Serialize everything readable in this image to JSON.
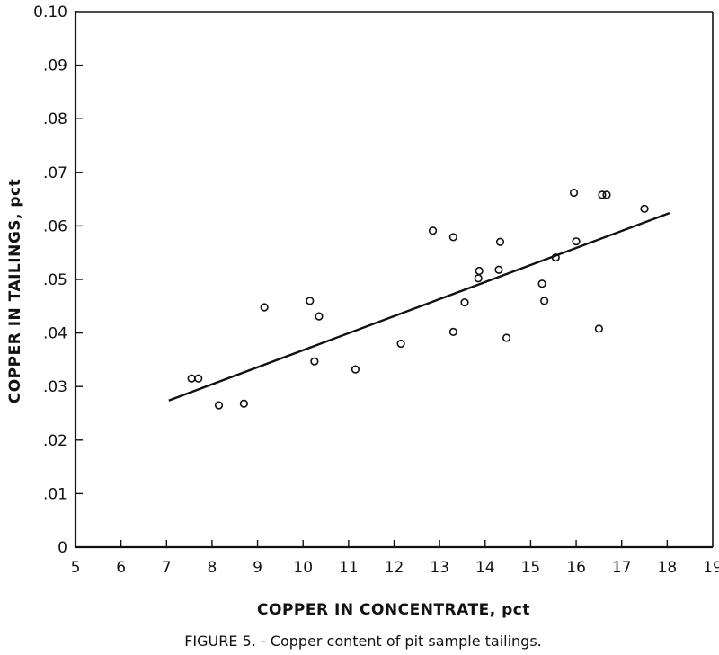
{
  "chart_data": {
    "type": "scatter",
    "title": "",
    "caption": "FIGURE 5. - Copper content of pit sample tailings.",
    "xlabel": "COPPER IN CONCENTRATE, pct",
    "ylabel": "COPPER IN TAILINGS, pct",
    "xlim": [
      5,
      19
    ],
    "ylim": [
      0,
      0.1
    ],
    "x_ticks": [
      "5",
      "6",
      "7",
      "8",
      "9",
      "10",
      "11",
      "12",
      "13",
      "14",
      "15",
      "16",
      "17",
      "18",
      "19"
    ],
    "y_ticks": [
      "0",
      ".01",
      ".02",
      ".03",
      ".04",
      ".05",
      ".06",
      ".07",
      ".08",
      ".09",
      "0.10"
    ],
    "grid": false,
    "colors": {
      "ink": "#111111",
      "background": "#ffffff"
    },
    "series": [
      {
        "marker": "open-circle",
        "points": [
          {
            "x": 7.55,
            "y": 0.0315
          },
          {
            "x": 7.7,
            "y": 0.0315
          },
          {
            "x": 8.15,
            "y": 0.0265
          },
          {
            "x": 8.7,
            "y": 0.0268
          },
          {
            "x": 9.15,
            "y": 0.0448
          },
          {
            "x": 10.15,
            "y": 0.046
          },
          {
            "x": 10.25,
            "y": 0.0347
          },
          {
            "x": 10.35,
            "y": 0.0431
          },
          {
            "x": 11.15,
            "y": 0.0332
          },
          {
            "x": 12.15,
            "y": 0.038
          },
          {
            "x": 12.85,
            "y": 0.0591
          },
          {
            "x": 13.3,
            "y": 0.0579
          },
          {
            "x": 13.3,
            "y": 0.0402
          },
          {
            "x": 13.55,
            "y": 0.0457
          },
          {
            "x": 13.85,
            "y": 0.0502
          },
          {
            "x": 13.87,
            "y": 0.0516
          },
          {
            "x": 14.3,
            "y": 0.0518
          },
          {
            "x": 14.33,
            "y": 0.057
          },
          {
            "x": 14.47,
            "y": 0.0391
          },
          {
            "x": 15.25,
            "y": 0.0492
          },
          {
            "x": 15.3,
            "y": 0.046
          },
          {
            "x": 15.55,
            "y": 0.0541
          },
          {
            "x": 15.95,
            "y": 0.0662
          },
          {
            "x": 16.0,
            "y": 0.0571
          },
          {
            "x": 16.5,
            "y": 0.0408
          },
          {
            "x": 16.57,
            "y": 0.0658
          },
          {
            "x": 16.67,
            "y": 0.0658
          },
          {
            "x": 17.5,
            "y": 0.0632
          }
        ]
      }
    ],
    "trendline": {
      "x": [
        7.05,
        18.05
      ],
      "y": [
        0.0274,
        0.0624
      ]
    }
  }
}
